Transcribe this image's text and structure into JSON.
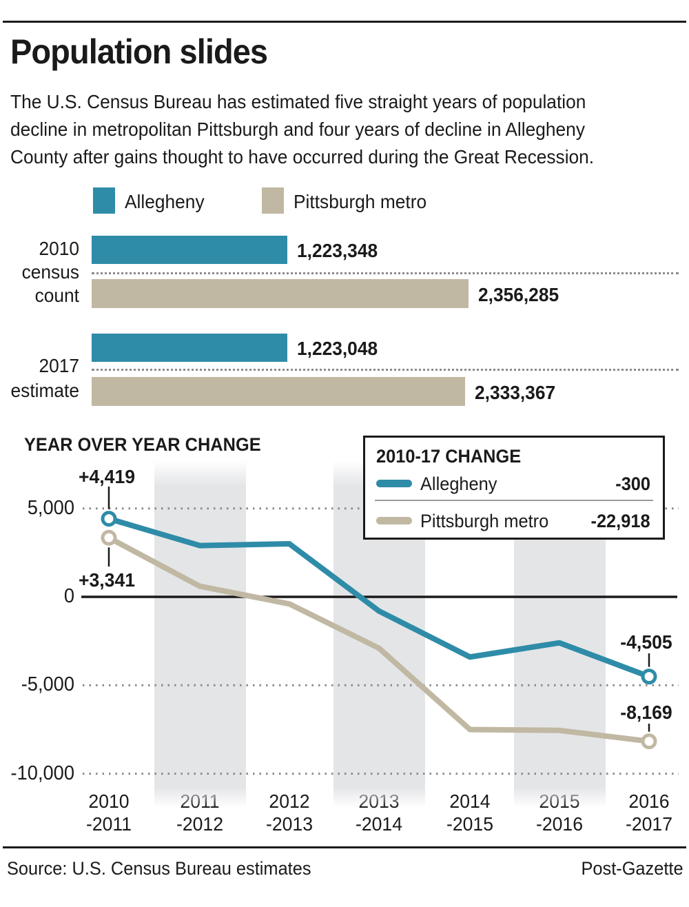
{
  "header": {
    "title": "Population slides",
    "intro_lines": [
      "The U.S. Census Bureau has estimated five straight years of population",
      "decline in metropolitan Pittsburgh and four years of decline in Allegheny",
      "County after gains thought to have occurred during the Great Recession."
    ]
  },
  "colors": {
    "allegheny": "#2E8CA8",
    "metro": "#C1B8A3",
    "band": "#E4E5E7",
    "ink": "#1A1A1A"
  },
  "chart_data": [
    {
      "type": "bar",
      "legend": [
        "Allegheny",
        "Pittsburgh metro"
      ],
      "groups": [
        {
          "label_lines": [
            "2010",
            "census",
            "count"
          ],
          "bars": [
            {
              "series": "Allegheny",
              "value": 1223348,
              "label": "1,223,348"
            },
            {
              "series": "Pittsburgh metro",
              "value": 2356285,
              "label": "2,356,285"
            }
          ]
        },
        {
          "label_lines": [
            "2017",
            "estimate"
          ],
          "bars": [
            {
              "series": "Allegheny",
              "value": 1223048,
              "label": "1,223,048"
            },
            {
              "series": "Pittsburgh metro",
              "value": 2333367,
              "label": "2,333,367"
            }
          ]
        }
      ]
    },
    {
      "type": "line",
      "title": "YEAR OVER YEAR CHANGE",
      "categories": [
        "2010\n-2011",
        "2011\n-2012",
        "2012\n-2013",
        "2013\n-2014",
        "2014\n-2015",
        "2015\n-2016",
        "2016\n-2017"
      ],
      "yticks": [
        {
          "label": "5,000",
          "value": 5000
        },
        {
          "label": "0",
          "value": 0
        },
        {
          "label": "-5,000",
          "value": -5000
        },
        {
          "label": "-10,000",
          "value": -10000
        }
      ],
      "ylim": [
        -10000,
        5000
      ],
      "shaded_columns": [
        1,
        3,
        5
      ],
      "series": [
        {
          "name": "Allegheny",
          "color": "#2E8CA8",
          "values": [
            4419,
            2900,
            3000,
            -800,
            -3400,
            -2600,
            -4505
          ],
          "first_point_label": "+4,419",
          "last_point_label": "-4,505"
        },
        {
          "name": "Pittsburgh metro",
          "color": "#C1B8A3",
          "values": [
            3341,
            600,
            -400,
            -2900,
            -7500,
            -7550,
            -8169
          ],
          "first_point_label": "+3,341",
          "last_point_label": "-8,169"
        }
      ],
      "inner_legend": {
        "title": "2010-17 CHANGE",
        "rows": [
          {
            "name": "Allegheny",
            "value": "-300"
          },
          {
            "name": "Pittsburgh metro",
            "value": "-22,918"
          }
        ]
      }
    }
  ],
  "footer": {
    "source": "Source: U.S. Census Bureau estimates",
    "credit": "Post-Gazette"
  }
}
